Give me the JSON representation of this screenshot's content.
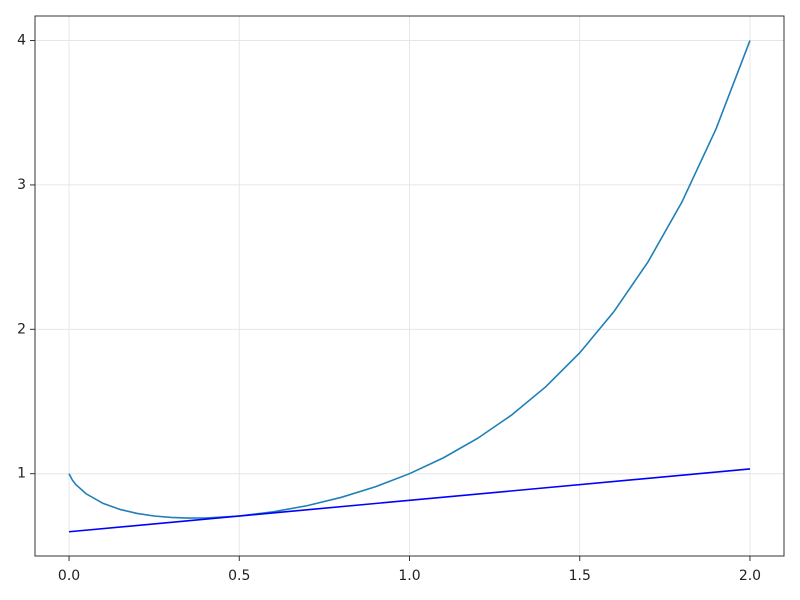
{
  "chart_data": {
    "type": "line",
    "xlim": [
      -0.1,
      2.1
    ],
    "ylim": [
      0.43,
      4.17
    ],
    "xticks": [
      {
        "value": 0,
        "label": "0.0"
      },
      0.5,
      {
        "value": 1,
        "label": "1.0"
      },
      1.5,
      {
        "value": 2,
        "label": "2.0"
      }
    ],
    "yticks": [
      1,
      2,
      3,
      4
    ],
    "grid": true,
    "series": [
      {
        "color": "#1f7fb8",
        "x": [
          0,
          0.01,
          0.02,
          0.05,
          0.1,
          0.15,
          0.2,
          0.25,
          0.3,
          0.35,
          0.4,
          0.5,
          0.6,
          0.7,
          0.8,
          0.9,
          1.0,
          1.1,
          1.2,
          1.3,
          1.4,
          1.5,
          1.6,
          1.7,
          1.8,
          1.9,
          2.0
        ],
        "values": [
          1,
          0.955,
          0.9247,
          0.8609,
          0.7943,
          0.7523,
          0.7248,
          0.7071,
          0.6968,
          0.6925,
          0.6931,
          0.7071,
          0.736,
          0.7791,
          0.8365,
          0.9095,
          1,
          1.1105,
          1.2446,
          1.4065,
          1.6017,
          1.8371,
          2.1212,
          2.4647,
          2.8807,
          3.3858,
          4
        ]
      },
      {
        "color": "#0000ff",
        "x": [
          0,
          2
        ],
        "values": [
          0.598,
          1.033
        ]
      }
    ]
  }
}
